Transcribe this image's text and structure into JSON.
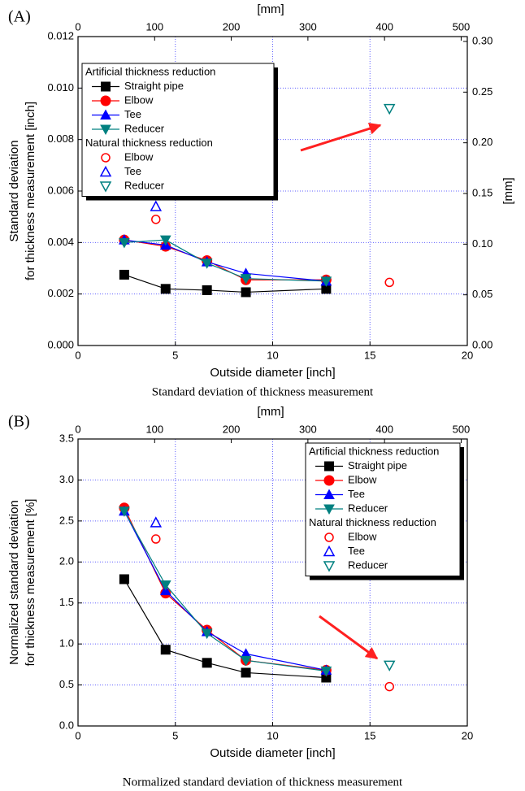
{
  "chart_data": [
    {
      "type": "line",
      "panel_label": "(A)",
      "caption": "Standard deviation of thickness measurement",
      "xlabel": "Outside diameter [inch]",
      "ylabel": [
        "Standard deviation",
        "for thickness measurement  [inch]"
      ],
      "x2label": "[mm]",
      "y2label": "[mm]",
      "xlim": [
        0,
        20
      ],
      "xticks": [
        0,
        5,
        10,
        15,
        20
      ],
      "x2lim": [
        0,
        508
      ],
      "x2ticks": [
        0,
        100,
        200,
        300,
        400,
        500
      ],
      "ylim": [
        0,
        0.012
      ],
      "yticks": [
        {
          "value": 0,
          "label": "0.000"
        },
        {
          "value": 0.002,
          "label": "0.002"
        },
        {
          "value": 0.004,
          "label": "0.004"
        },
        {
          "value": 0.006,
          "label": "0.006"
        },
        {
          "value": 0.008,
          "label": "0.008"
        },
        {
          "value": 0.01,
          "label": "0.010"
        },
        {
          "value": 0.012,
          "label": "0.012"
        }
      ],
      "y2lim": [
        0,
        0.3048
      ],
      "y2ticks": [
        {
          "value": 0,
          "label": "0.00"
        },
        {
          "value": 0.05,
          "label": "0.05"
        },
        {
          "value": 0.1,
          "label": "0.10"
        },
        {
          "value": 0.15,
          "label": "0.15"
        },
        {
          "value": 0.2,
          "label": "0.20"
        },
        {
          "value": 0.25,
          "label": "0.25"
        },
        {
          "value": 0.3,
          "label": "0.30"
        }
      ],
      "grid": true,
      "legend": {
        "position": "upper left",
        "groups": [
          "Artificial thickness reduction",
          "Natural thickness reduction"
        ]
      },
      "series": [
        {
          "name": "Straight pipe",
          "group": 0,
          "color": "#000000",
          "marker": "square",
          "filled": true,
          "line": true,
          "x": [
            2.375,
            4.5,
            6.625,
            8.625,
            12.75
          ],
          "values": [
            0.00275,
            0.0022,
            0.00215,
            0.00207,
            0.0022
          ]
        },
        {
          "name": "Elbow",
          "group": 0,
          "color": "#ff0000",
          "marker": "circle",
          "filled": true,
          "line": true,
          "x": [
            2.375,
            4.5,
            6.625,
            8.625,
            12.75
          ],
          "values": [
            0.0041,
            0.00385,
            0.0033,
            0.00255,
            0.00255
          ]
        },
        {
          "name": "Tee",
          "group": 0,
          "color": "#0000ff",
          "marker": "triangle-up",
          "filled": true,
          "line": true,
          "x": [
            2.375,
            4.5,
            6.625,
            8.625,
            12.75
          ],
          "values": [
            0.0041,
            0.0039,
            0.00325,
            0.0028,
            0.0025
          ]
        },
        {
          "name": "Reducer",
          "group": 0,
          "color": "#008080",
          "marker": "triangle-down",
          "filled": true,
          "line": true,
          "x": [
            2.375,
            4.5,
            6.625,
            8.625,
            12.75
          ],
          "values": [
            0.004,
            0.0041,
            0.0032,
            0.0026,
            0.0025
          ]
        },
        {
          "name": "Elbow",
          "group": 1,
          "color": "#ff0000",
          "marker": "circle",
          "filled": false,
          "line": false,
          "x": [
            4,
            16
          ],
          "values": [
            0.0049,
            0.00245
          ]
        },
        {
          "name": "Tee",
          "group": 1,
          "color": "#0000ff",
          "marker": "triangle-up",
          "filled": false,
          "line": false,
          "x": [
            4
          ],
          "values": [
            0.0054
          ]
        },
        {
          "name": "Reducer",
          "group": 1,
          "color": "#008080",
          "marker": "triangle-down",
          "filled": false,
          "line": false,
          "x": [
            16
          ],
          "values": [
            0.0092
          ]
        }
      ]
    },
    {
      "type": "line",
      "panel_label": "(B)",
      "caption": "Normalized standard deviation of thickness measurement",
      "xlabel": "Outside diameter [inch]",
      "ylabel": [
        "Normalized standard deviation",
        "for thickness measurement  [%]"
      ],
      "x2label": "[mm]",
      "xlim": [
        0,
        20
      ],
      "xticks": [
        0,
        5,
        10,
        15,
        20
      ],
      "x2lim": [
        0,
        508
      ],
      "x2ticks": [
        0,
        100,
        200,
        300,
        400,
        500
      ],
      "ylim": [
        0,
        3.5
      ],
      "yticks": [
        {
          "value": 0,
          "label": "0.0"
        },
        {
          "value": 0.5,
          "label": "0.5"
        },
        {
          "value": 1,
          "label": "1.0"
        },
        {
          "value": 1.5,
          "label": "1.5"
        },
        {
          "value": 2,
          "label": "2.0"
        },
        {
          "value": 2.5,
          "label": "2.5"
        },
        {
          "value": 3,
          "label": "3.0"
        },
        {
          "value": 3.5,
          "label": "3.5"
        }
      ],
      "grid": true,
      "legend": {
        "position": "upper right",
        "groups": [
          "Artificial thickness reduction",
          "Natural thickness reduction"
        ]
      },
      "series": [
        {
          "name": "Straight pipe",
          "group": 0,
          "color": "#000000",
          "marker": "square",
          "filled": true,
          "line": true,
          "x": [
            2.375,
            4.5,
            6.625,
            8.625,
            12.75
          ],
          "values": [
            1.79,
            0.93,
            0.77,
            0.65,
            0.59
          ]
        },
        {
          "name": "Elbow",
          "group": 0,
          "color": "#ff0000",
          "marker": "circle",
          "filled": true,
          "line": true,
          "x": [
            2.375,
            4.5,
            6.625,
            8.625,
            12.75
          ],
          "values": [
            2.66,
            1.62,
            1.17,
            0.8,
            0.68
          ]
        },
        {
          "name": "Tee",
          "group": 0,
          "color": "#0000ff",
          "marker": "triangle-up",
          "filled": true,
          "line": true,
          "x": [
            2.375,
            4.5,
            6.625,
            8.625,
            12.75
          ],
          "values": [
            2.62,
            1.65,
            1.15,
            0.88,
            0.68
          ]
        },
        {
          "name": "Reducer",
          "group": 0,
          "color": "#008080",
          "marker": "triangle-down",
          "filled": true,
          "line": true,
          "x": [
            2.375,
            4.5,
            6.625,
            8.625,
            12.75
          ],
          "values": [
            2.62,
            1.72,
            1.13,
            0.8,
            0.67
          ]
        },
        {
          "name": "Elbow",
          "group": 1,
          "color": "#ff0000",
          "marker": "circle",
          "filled": false,
          "line": false,
          "x": [
            4,
            16
          ],
          "values": [
            2.28,
            0.48
          ]
        },
        {
          "name": "Tee",
          "group": 1,
          "color": "#0000ff",
          "marker": "triangle-up",
          "filled": false,
          "line": false,
          "x": [
            4
          ],
          "values": [
            2.48
          ]
        },
        {
          "name": "Reducer",
          "group": 1,
          "color": "#008080",
          "marker": "triangle-down",
          "filled": false,
          "line": false,
          "x": [
            16
          ],
          "values": [
            0.74
          ]
        }
      ]
    }
  ]
}
